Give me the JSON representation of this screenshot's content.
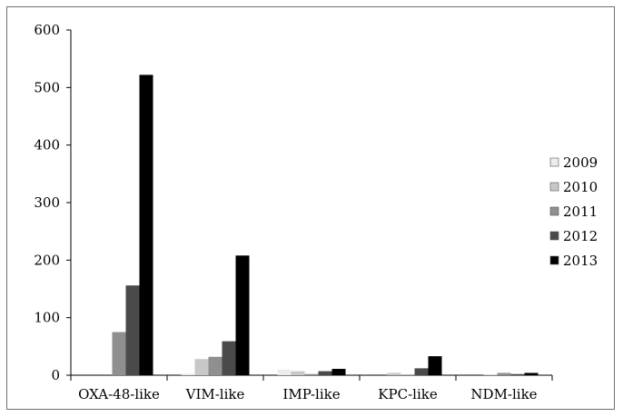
{
  "chart_data": {
    "type": "bar",
    "categories": [
      "OXA-48-like",
      "VIM-like",
      "IMP-like",
      "KPC-like",
      "NDM-like"
    ],
    "series": [
      {
        "name": "2009",
        "color": "#ececec",
        "values": [
          0,
          3,
          10,
          0,
          0
        ]
      },
      {
        "name": "2010",
        "color": "#c8c8c8",
        "values": [
          0,
          28,
          7,
          4,
          1
        ]
      },
      {
        "name": "2011",
        "color": "#8f8f8f",
        "values": [
          75,
          32,
          2,
          1,
          4
        ]
      },
      {
        "name": "2012",
        "color": "#4a4a4a",
        "values": [
          156,
          59,
          7,
          12,
          2
        ]
      },
      {
        "name": "2013",
        "color": "#000000",
        "values": [
          522,
          208,
          11,
          33,
          4
        ]
      }
    ],
    "ylim": [
      0,
      600
    ],
    "yticks": [
      0,
      100,
      200,
      300,
      400,
      500,
      600
    ],
    "title": "",
    "xlabel": "",
    "ylabel": "",
    "grid": false,
    "legend_position": "right"
  }
}
